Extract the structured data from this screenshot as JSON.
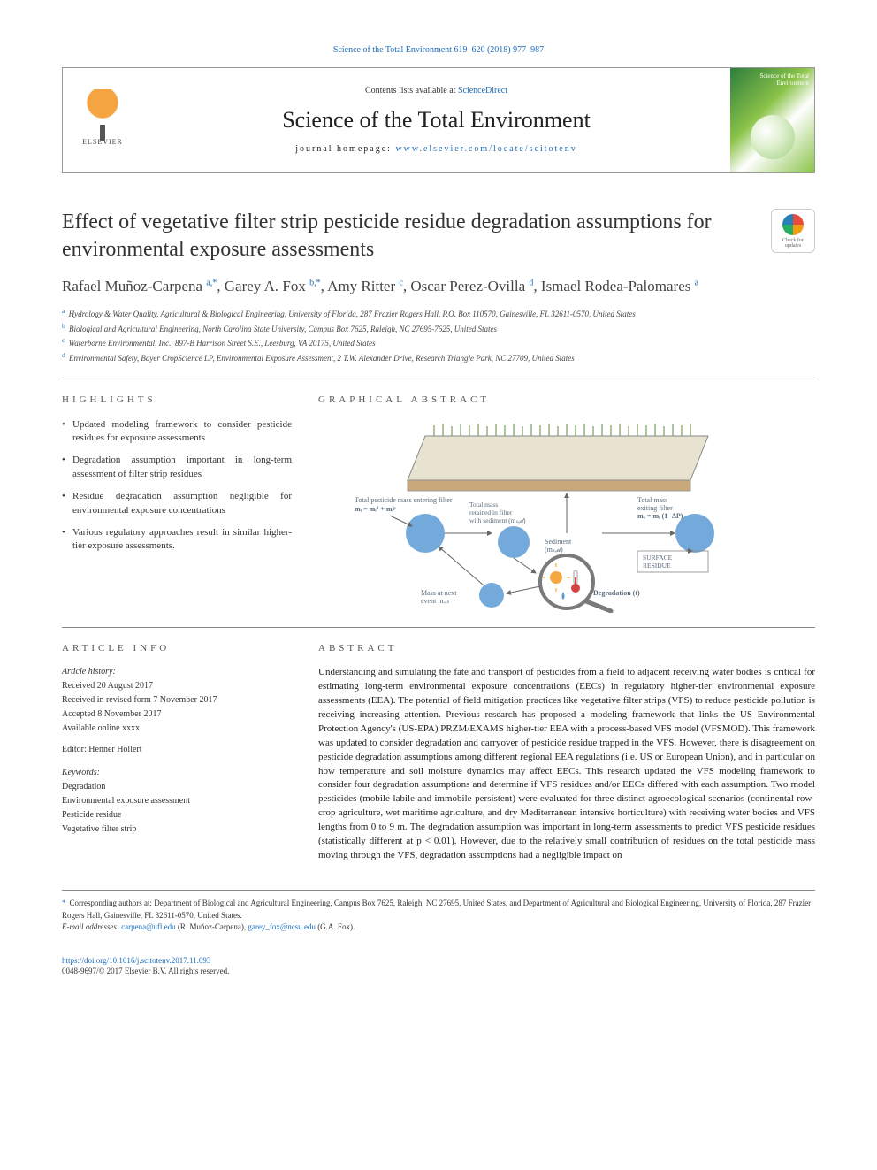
{
  "header": {
    "citation": "Science of the Total Environment 619–620 (2018) 977–987",
    "contents_prefix": "Contents lists available at ",
    "contents_link": "ScienceDirect",
    "journal": "Science of the Total Environment",
    "homepage_prefix": "journal homepage: ",
    "homepage_link": "www.elsevier.com/locate/scitotenv",
    "publisher_logo_text": "ELSEVIER",
    "cover_title": "Science of the Total Environment"
  },
  "crossmark": {
    "line1": "Check for",
    "line2": "updates"
  },
  "title": "Effect of vegetative filter strip pesticide residue degradation assumptions for environmental exposure assessments",
  "authors_html": "Rafael Muñoz-Carpena <sup>a,*</sup>, Garey A. Fox <sup>b,*</sup>, Amy Ritter <sup>c</sup>, Oscar Perez-Ovilla <sup>d</sup>, Ismael Rodea-Palomares <sup>a</sup>",
  "affiliations": [
    {
      "key": "a",
      "text": "Hydrology & Water Quality, Agricultural & Biological Engineering, University of Florida, 287 Frazier Rogers Hall, P.O. Box 110570, Gainesville, FL 32611-0570, United States"
    },
    {
      "key": "b",
      "text": "Biological and Agricultural Engineering, North Carolina State University, Campus Box 7625, Raleigh, NC 27695-7625, United States"
    },
    {
      "key": "c",
      "text": "Waterborne Environmental, Inc., 897-B Harrison Street S.E., Leesburg, VA 20175, United States"
    },
    {
      "key": "d",
      "text": "Environmental Safety, Bayer CropScience LP, Environmental Exposure Assessment, 2 T.W. Alexander Drive, Research Triangle Park, NC 27709, United States"
    }
  ],
  "sections": {
    "highlights": "HIGHLIGHTS",
    "graphical_abstract": "GRAPHICAL ABSTRACT",
    "article_info": "ARTICLE INFO",
    "abstract": "ABSTRACT"
  },
  "highlights": [
    "Updated modeling framework to consider pesticide residues for exposure assessments",
    "Degradation assumption important in long-term assessment of filter strip residues",
    "Residue degradation assumption negligible for environmental exposure concentrations",
    "Various regulatory approaches result in similar higher-tier exposure assessments."
  ],
  "graphical_abstract": {
    "labels": {
      "total_in": "Total pesticide mass entering filter",
      "mi_eq": "mᵢ = mᵢᵈ + mᵢᵖ",
      "total_sed": "Total mass retained in filter with sediment (mₛₑ𝒹)",
      "sed_label": "Sediment (mₛₑ𝒹)",
      "total_out": "Total mass exiting filter",
      "mo_eq": "mₒ = mᵢ (1−ΔP)",
      "surface_residue": "SURFACE RESIDUE",
      "mass_next": "Mass at next event mᵣₑₛ",
      "degradation": "Degradation (t)"
    },
    "colors": {
      "grass": "#7a9b5a",
      "soil": "#c9a97a",
      "water": "#5b9bd5",
      "sun": "#f4a940",
      "thermo_red": "#d64545",
      "magnifier_ring": "#7a7a7a",
      "text": "#5a6b7a"
    }
  },
  "article_info": {
    "history_head": "Article history:",
    "received": "Received 20 August 2017",
    "revised": "Received in revised form 7 November 2017",
    "accepted": "Accepted 8 November 2017",
    "online": "Available online xxxx",
    "editor_label": "Editor:",
    "editor": "Henner Hollert",
    "keywords_head": "Keywords:",
    "keywords": [
      "Degradation",
      "Environmental exposure assessment",
      "Pesticide residue",
      "Vegetative filter strip"
    ]
  },
  "abstract": "Understanding and simulating the fate and transport of pesticides from a field to adjacent receiving water bodies is critical for estimating long-term environmental exposure concentrations (EECs) in regulatory higher-tier environmental exposure assessments (EEA). The potential of field mitigation practices like vegetative filter strips (VFS) to reduce pesticide pollution is receiving increasing attention. Previous research has proposed a modeling framework that links the US Environmental Protection Agency's (US-EPA) PRZM/EXAMS higher-tier EEA with a process-based VFS model (VFSMOD). This framework was updated to consider degradation and carryover of pesticide residue trapped in the VFS. However, there is disagreement on pesticide degradation assumptions among different regional EEA regulations (i.e. US or European Union), and in particular on how temperature and soil moisture dynamics may affect EECs. This research updated the VFS modeling framework to consider four degradation assumptions and determine if VFS residues and/or EECs differed with each assumption. Two model pesticides (mobile-labile and immobile-persistent) were evaluated for three distinct agroecological scenarios (continental row-crop agriculture, wet maritime agriculture, and dry Mediterranean intensive horticulture) with receiving water bodies and VFS lengths from 0 to 9 m. The degradation assumption was important in long-term assessments to predict VFS pesticide residues (statistically different at p < 0.01). However, due to the relatively small contribution of residues on the total pesticide mass moving through the VFS, degradation assumptions had a negligible impact on",
  "footnotes": {
    "corr": "Corresponding authors at: Department of Biological and Agricultural Engineering, Campus Box 7625, Raleigh, NC 27695, United States, and Department of Agricultural and Biological Engineering, University of Florida, 287 Frazier Rogers Hall, Gainesville, FL 32611-0570, United States.",
    "email_label": "E-mail addresses:",
    "email1": "carpena@ufl.edu",
    "email1_who": "(R. Muñoz-Carpena),",
    "email2": "garey_fox@ncsu.edu",
    "email2_who": "(G.A. Fox)."
  },
  "footer": {
    "doi": "https://doi.org/10.1016/j.scitotenv.2017.11.093",
    "issn_line": "0048-9697/© 2017 Elsevier B.V. All rights reserved."
  }
}
